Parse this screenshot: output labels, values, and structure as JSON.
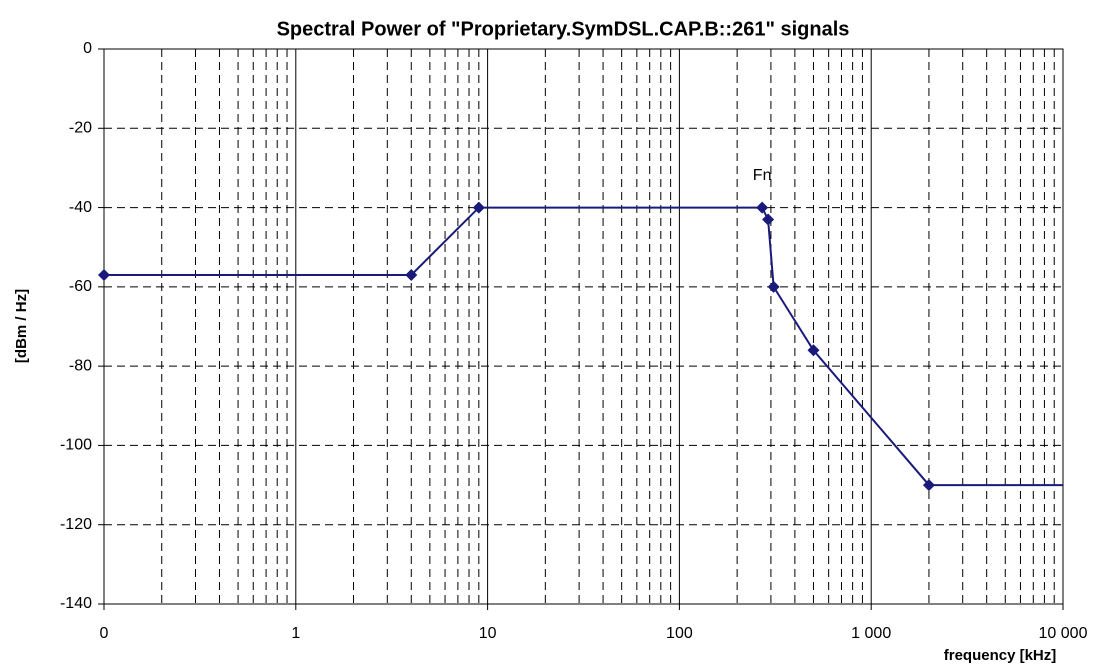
{
  "chart_data": {
    "type": "line",
    "title": "Spectral Power of \"Proprietary.SymDSL.CAP.B::261\" signals",
    "x_label": "frequency [kHz]",
    "y_label": "[dBm / Hz]",
    "xscale": "log",
    "xlim": [
      0.1,
      10000
    ],
    "xticks": [
      {
        "value": 0.1,
        "label": "0"
      },
      1,
      10,
      100,
      {
        "value": 1000,
        "label": "1 000"
      },
      {
        "value": 10000,
        "label": "10 000"
      }
    ],
    "ylim": [
      -140,
      0
    ],
    "yticks": [
      0,
      -20,
      -40,
      -60,
      -80,
      -100,
      -120,
      -140
    ],
    "grid": true,
    "minor_grid": true,
    "series": [
      {
        "color": "#1a1a7a",
        "marker": "diamond",
        "x": [
          0.1,
          4,
          9,
          270,
          290,
          310,
          500,
          2000
        ],
        "values": [
          -57,
          -57,
          -40,
          -40,
          -43,
          -60,
          -76,
          -110
        ]
      },
      {
        "color": "#1a1a7a",
        "marker": "none",
        "x": [
          2000,
          10000
        ],
        "values": [
          -110,
          -110
        ]
      }
    ],
    "annotations": [
      {
        "text": "Fn",
        "x": 270,
        "y": -32
      }
    ]
  }
}
